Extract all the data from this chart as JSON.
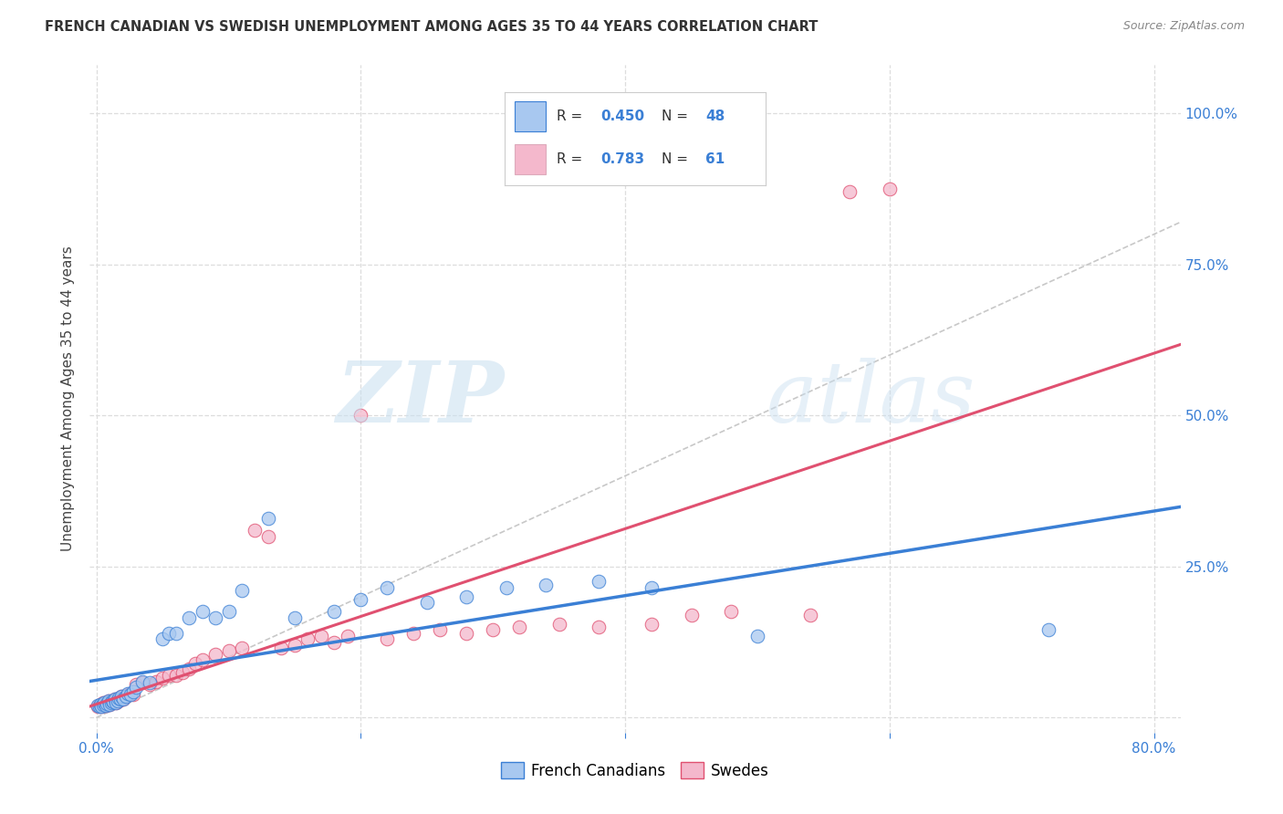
{
  "title": "FRENCH CANADIAN VS SWEDISH UNEMPLOYMENT AMONG AGES 35 TO 44 YEARS CORRELATION CHART",
  "source": "Source: ZipAtlas.com",
  "ylabel": "Unemployment Among Ages 35 to 44 years",
  "xlim": [
    -0.005,
    0.82
  ],
  "ylim": [
    -0.025,
    1.08
  ],
  "xticks": [
    0.0,
    0.2,
    0.4,
    0.6,
    0.8
  ],
  "xticklabels": [
    "0.0%",
    "",
    "",
    "",
    "80.0%"
  ],
  "yticks_right": [
    0.0,
    0.25,
    0.5,
    0.75,
    1.0
  ],
  "yticklabels_right": [
    "",
    "25.0%",
    "50.0%",
    "75.0%",
    "100.0%"
  ],
  "color_blue": "#a8c8f0",
  "color_pink": "#f4b8cc",
  "color_blue_line": "#3a7fd5",
  "color_pink_line": "#e05070",
  "color_diag": "#c8c8c8",
  "color_text_blue": "#3a7fd5",
  "watermark_zip_color": "#c8dff0",
  "watermark_atlas_color": "#c8dff0",
  "fc_x": [
    0.001,
    0.002,
    0.003,
    0.004,
    0.005,
    0.006,
    0.007,
    0.008,
    0.009,
    0.01,
    0.011,
    0.012,
    0.013,
    0.014,
    0.015,
    0.016,
    0.017,
    0.018,
    0.019,
    0.02,
    0.022,
    0.024,
    0.026,
    0.028,
    0.03,
    0.035,
    0.04,
    0.05,
    0.055,
    0.06,
    0.07,
    0.08,
    0.09,
    0.1,
    0.11,
    0.13,
    0.15,
    0.18,
    0.2,
    0.22,
    0.25,
    0.28,
    0.31,
    0.34,
    0.38,
    0.42,
    0.5,
    0.72
  ],
  "fc_y": [
    0.02,
    0.018,
    0.022,
    0.019,
    0.021,
    0.025,
    0.02,
    0.023,
    0.028,
    0.022,
    0.025,
    0.028,
    0.026,
    0.03,
    0.025,
    0.028,
    0.032,
    0.03,
    0.035,
    0.03,
    0.035,
    0.04,
    0.038,
    0.042,
    0.05,
    0.06,
    0.058,
    0.13,
    0.14,
    0.14,
    0.165,
    0.175,
    0.165,
    0.175,
    0.21,
    0.33,
    0.165,
    0.175,
    0.195,
    0.215,
    0.19,
    0.2,
    0.215,
    0.22,
    0.225,
    0.215,
    0.135,
    0.145
  ],
  "sw_x": [
    0.001,
    0.002,
    0.003,
    0.004,
    0.005,
    0.006,
    0.007,
    0.008,
    0.009,
    0.01,
    0.011,
    0.012,
    0.013,
    0.014,
    0.015,
    0.016,
    0.017,
    0.018,
    0.019,
    0.02,
    0.022,
    0.024,
    0.026,
    0.028,
    0.03,
    0.035,
    0.04,
    0.045,
    0.05,
    0.055,
    0.06,
    0.065,
    0.07,
    0.075,
    0.08,
    0.09,
    0.1,
    0.11,
    0.12,
    0.13,
    0.14,
    0.15,
    0.16,
    0.17,
    0.18,
    0.19,
    0.2,
    0.22,
    0.24,
    0.26,
    0.28,
    0.3,
    0.32,
    0.35,
    0.38,
    0.42,
    0.45,
    0.48,
    0.54,
    0.57,
    0.6
  ],
  "sw_y": [
    0.018,
    0.02,
    0.022,
    0.019,
    0.025,
    0.022,
    0.02,
    0.025,
    0.028,
    0.022,
    0.025,
    0.026,
    0.028,
    0.03,
    0.025,
    0.03,
    0.028,
    0.032,
    0.035,
    0.03,
    0.035,
    0.038,
    0.04,
    0.038,
    0.055,
    0.058,
    0.055,
    0.06,
    0.065,
    0.07,
    0.07,
    0.075,
    0.08,
    0.09,
    0.095,
    0.105,
    0.11,
    0.115,
    0.31,
    0.3,
    0.115,
    0.12,
    0.13,
    0.135,
    0.125,
    0.135,
    0.5,
    0.13,
    0.14,
    0.145,
    0.14,
    0.145,
    0.15,
    0.155,
    0.15,
    0.155,
    0.17,
    0.175,
    0.17,
    0.87,
    0.875
  ]
}
